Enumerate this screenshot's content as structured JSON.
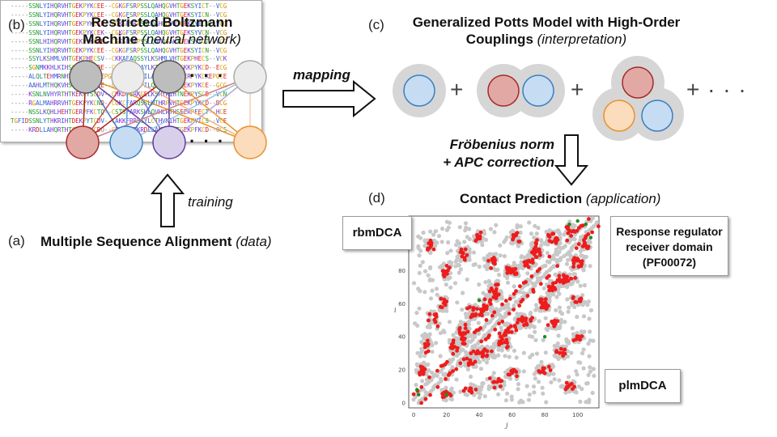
{
  "panel_b": {
    "label": "(b)",
    "title_line1": "Restricted Boltzmann",
    "title_line2_bold": "Machine",
    "title_line2_italic": "(neural network)",
    "dots_top": "· · ·",
    "dots_bottom": "· · ·",
    "training_label": "training"
  },
  "panel_c": {
    "label": "(c)",
    "title_line1": "Generalized Potts Model with High-Order",
    "title_line2_bold": "Couplings",
    "title_line2_italic": "(interpretation)",
    "plus1": "+",
    "plus2": "+",
    "plus_dots": "+ · · ·",
    "mapping_label": "mapping",
    "frobenius_line1": "Fröbenius norm",
    "frobenius_line2": "+ APC correction"
  },
  "panel_a": {
    "label": "(a)",
    "title_bold": "Multiple Sequence Alignment",
    "title_italic": "(data)",
    "sequences": [
      "-----SSNLYIHQRVHTGEKPYKCEE--CGKGFSRPSSLQAHQGVHTGEKSYICT--VCG",
      "-----SSNLYIHQRVHTGEKPYKCEE--CGKGFSRPSSLQAHQGVHTGEKSYICN--VCG",
      "-----SSNLYIHQRVHTGEKPYKCEE--CGKGFSRPSSLQAHQGVHTGEKSYICN--VCG",
      "-----SSNLYIHQRVHTGEKPYKCEK--CGKGFSRPSSLQAHQGVHTGEKSYVCN--VCG",
      "-----SSNLHIHQRVHTGEKPYKCEE--CGKGFSRPSSLQAHQGAHTGEKSYICT--VCG",
      "-----SSNLYIHQRVHTGEKPYKCEE--CGKGFSRPSSLQAHQGVHTGEKSYICN--VCG",
      "-----SSYLKSHMLVHTGEKPHECSV--CKKAFAQSSYLKSHMLVHTGEKPHECS--VCK",
      "-----SGNMKKHLKIHSGKKPYKCDE--CGKSFTEHAYLKTHLIIHSGKKPYKCD--ECG",
      "-----ALQLTEHMRNHTGEKPYKCKEPGCGKGFIRSNILARHKRIHTGERPYKCKEPGCE",
      "-----AAHLMTHQKVHSGEKPFVCEE--CGKYFRSRPILQVHYRIHTGEKPYKCE--GCG",
      "-----KSNLNVHYRTHTKEKPYSCDV--CHKDFSRKGELKSHYRIHTNEKPYSCD--VCN",
      "-----RGALMAHRRVHTGEKPYKCND--CGKCFARQSSLWTHRPVHTGEKPYKCD--DCG",
      "-----NSSLKQHLHEHTGERPFKCTQ--CSTSFARKSHLQVHLRTHSEERPFECT--HCE",
      "TGFIDSSNLYTHKRIHTDEKPYTCDV--CAKKFRRSSYLCTHVKIHTGEKPYICS--VCE",
      "-----KRDLLAHQRTHTGEKPFKCDO--CEYKTARKRDLLAHQKRHTGEKPFKCD--OCS"
    ]
  },
  "panel_d": {
    "label": "(d)",
    "title_bold": "Contact Prediction",
    "title_italic": "(application)",
    "rbm_label": "rbmDCA",
    "plm_label": "plmDCA",
    "domain_line1": "Response regulator",
    "domain_line2": "receiver domain",
    "domain_line3": "(PF00072)",
    "x_axis_label": "j",
    "y_axis_label": "i"
  },
  "colors": {
    "hidden_dark": "#bdbdbd",
    "hidden_light": "#ececec",
    "red_node": "#e2a9a4",
    "blue_node": "#c6dcf2",
    "purple_node": "#d8d0ea",
    "orange_node": "#fbdcbc",
    "potts_halo": "#d6d6d6",
    "contact_red": "#ee1c1c",
    "contact_green": "#1e8c1e",
    "contact_grey": "#c8c8c8"
  },
  "chart_data": {
    "type": "scatter",
    "title": "",
    "xlabel": "j",
    "ylabel": "i",
    "xlim": [
      -3,
      113
    ],
    "ylim": [
      -3,
      113
    ],
    "x_ticks": [
      0,
      20,
      40,
      60,
      80,
      100
    ],
    "y_ticks": [
      0,
      20,
      40,
      60,
      80
    ],
    "series": [
      {
        "color": "#c8c8c8"
      },
      {
        "color": "#ee1c1c"
      },
      {
        "color": "#1e8c1e"
      }
    ]
  }
}
